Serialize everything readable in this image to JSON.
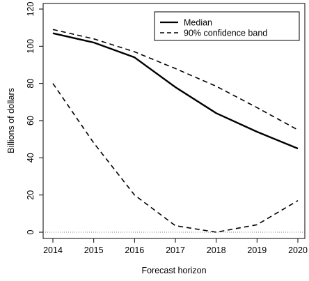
{
  "chart_data": {
    "type": "line",
    "xlabel": "Forecast horizon",
    "ylabel": "Billions of dollars",
    "x": [
      2014,
      2015,
      2016,
      2017,
      2018,
      2019,
      2020
    ],
    "xlim": [
      2014,
      2020
    ],
    "ylim": [
      0,
      120
    ],
    "y_ticks": [
      0,
      20,
      40,
      60,
      80,
      100,
      120
    ],
    "grid": false,
    "legend_position": "top-right",
    "reference_line": {
      "y": 0,
      "style": "dotted"
    },
    "series": [
      {
        "name": "Median",
        "line_style": "solid",
        "values": [
          107,
          102,
          94,
          78,
          64,
          54,
          45
        ]
      },
      {
        "name": "90% confidence band",
        "line_style": "dashed",
        "role": "upper",
        "values": [
          109,
          104,
          97,
          88,
          78.5,
          67,
          55
        ]
      },
      {
        "name": "90% confidence band",
        "line_style": "dashed",
        "role": "lower",
        "show_in_legend": false,
        "values": [
          80,
          48,
          20,
          3.5,
          0,
          4,
          17
        ]
      }
    ],
    "colors": {
      "line": "#000000",
      "frame": "#000000",
      "zero_line": "#555555"
    }
  }
}
